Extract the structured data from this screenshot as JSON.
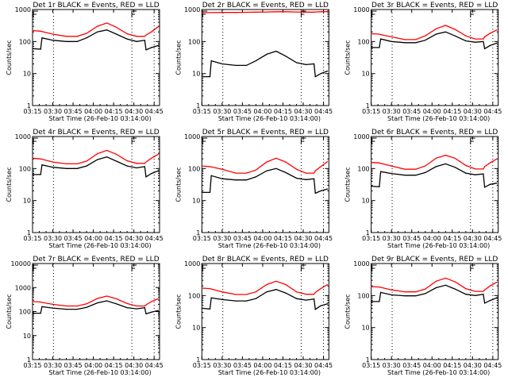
{
  "chart_data": {
    "type": "line",
    "layout": "3x3 grid",
    "x_unit": "minutes after 03:15",
    "xlim": [
      0,
      94
    ],
    "xticks": [
      0,
      15,
      30,
      45,
      60,
      75,
      90
    ],
    "xtick_labels": [
      "03:15",
      "03:30",
      "03:45",
      "04:00",
      "04:15",
      "04:30",
      "04:45"
    ],
    "xlabel": "Start Time (26-Feb-10 03:14:00)",
    "ylabel": "Counts/sec",
    "yscale": "log",
    "dotted_vlines": [
      15.5,
      73.5,
      90
    ],
    "x": [
      0,
      6,
      7,
      15,
      25,
      33,
      40,
      48,
      55,
      62,
      70,
      77,
      83,
      84,
      88,
      93
    ],
    "panels": [
      {
        "title": "Det 1r BLACK = Events, RED = LLD",
        "ylim": [
          1,
          1000
        ],
        "yticks": [
          1,
          10,
          100,
          1000
        ],
        "series": [
          {
            "name": "Events",
            "color": "#000000",
            "values": [
              60,
              58,
              130,
              110,
              100,
              100,
              130,
              200,
              230,
              170,
              120,
              100,
              110,
              55,
              65,
              75
            ]
          },
          {
            "name": "LLD",
            "color": "#ff0000",
            "values": [
              220,
              210,
              205,
              170,
              145,
              145,
              180,
              300,
              380,
              280,
              175,
              145,
              145,
              160,
              200,
              290
            ]
          }
        ]
      },
      {
        "title": "Det 2r BLACK = Events, RED = LLD",
        "ylim": [
          1,
          1000
        ],
        "yticks": [
          1,
          10,
          100,
          1000
        ],
        "series": [
          {
            "name": "Events",
            "color": "#000000",
            "values": [
              8,
              8,
              25,
              20,
              18,
              18,
              25,
              40,
              50,
              35,
              22,
              19,
              20,
              8,
              10,
              12
            ]
          },
          {
            "name": "LLD",
            "color": "#ff0000",
            "values": [
              800,
              800,
              800,
              810,
              810,
              820,
              830,
              840,
              850,
              850,
              840,
              830,
              830,
              840,
              850,
              860
            ]
          }
        ]
      },
      {
        "title": "Det 3r BLACK = Events, RED = LLD",
        "ylim": [
          1,
          1000
        ],
        "yticks": [
          1,
          10,
          100,
          1000
        ],
        "series": [
          {
            "name": "Events",
            "color": "#000000",
            "values": [
              65,
              65,
              120,
              100,
              92,
              92,
              110,
              170,
              200,
              150,
              105,
              95,
              100,
              60,
              75,
              90
            ]
          },
          {
            "name": "LLD",
            "color": "#ff0000",
            "values": [
              175,
              170,
              165,
              140,
              115,
              115,
              150,
              250,
              320,
              240,
              150,
              120,
              120,
              140,
              180,
              230
            ]
          }
        ]
      },
      {
        "title": "Det 4r BLACK = Events, RED = LLD",
        "ylim": [
          1,
          1000
        ],
        "yticks": [
          1,
          10,
          100,
          1000
        ],
        "series": [
          {
            "name": "Events",
            "color": "#000000",
            "values": [
              65,
              65,
              130,
              110,
              100,
              100,
              120,
              190,
              230,
              170,
              120,
              105,
              115,
              55,
              70,
              85
            ]
          },
          {
            "name": "LLD",
            "color": "#ff0000",
            "values": [
              210,
              200,
              195,
              160,
              140,
              140,
              170,
              290,
              370,
              280,
              175,
              145,
              145,
              160,
              210,
              280
            ]
          }
        ]
      },
      {
        "title": "Det 5r BLACK = Events, RED = LLD",
        "ylim": [
          1,
          1000
        ],
        "yticks": [
          1,
          10,
          100,
          1000
        ],
        "series": [
          {
            "name": "Events",
            "color": "#000000",
            "values": [
              18,
              18,
              60,
              48,
              44,
              44,
              55,
              85,
              100,
              75,
              50,
              45,
              48,
              17,
              20,
              23
            ]
          },
          {
            "name": "LLD",
            "color": "#ff0000",
            "values": [
              120,
              115,
              112,
              95,
              72,
              72,
              90,
              160,
              210,
              160,
              95,
              72,
              72,
              85,
              115,
              165
            ]
          }
        ]
      },
      {
        "title": "Det 6r BLACK = Events, RED = LLD",
        "ylim": [
          1,
          1000
        ],
        "yticks": [
          1,
          10,
          100,
          1000
        ],
        "series": [
          {
            "name": "Events",
            "color": "#000000",
            "values": [
              28,
              27,
              80,
              70,
              62,
              62,
              75,
              115,
              140,
              110,
              72,
              64,
              68,
              26,
              32,
              35
            ]
          },
          {
            "name": "LLD",
            "color": "#ff0000",
            "values": [
              155,
              150,
              145,
              120,
              95,
              95,
              120,
              210,
              260,
              210,
              125,
              97,
              97,
              115,
              150,
              200
            ]
          }
        ]
      },
      {
        "title": "Det 7r BLACK = Events, RED = LLD",
        "ylim": [
          1,
          10000
        ],
        "yticks": [
          1,
          10,
          100,
          1000,
          10000
        ],
        "series": [
          {
            "name": "Events",
            "color": "#000000",
            "values": [
              85,
              85,
              160,
              140,
              125,
              125,
              150,
              230,
              280,
              210,
              145,
              130,
              145,
              80,
              95,
              110
            ]
          },
          {
            "name": "LLD",
            "color": "#ff0000",
            "values": [
              260,
              250,
              240,
              200,
              170,
              170,
              210,
              350,
              440,
              340,
              215,
              170,
              170,
              190,
              260,
              340
            ]
          }
        ]
      },
      {
        "title": "Det 8r BLACK = Events, RED = LLD",
        "ylim": [
          1,
          1000
        ],
        "yticks": [
          1,
          10,
          100,
          1000
        ],
        "series": [
          {
            "name": "Events",
            "color": "#000000",
            "values": [
              40,
              38,
              85,
              75,
              68,
              68,
              80,
              130,
              155,
              120,
              80,
              72,
              78,
              37,
              48,
              55
            ]
          },
          {
            "name": "LLD",
            "color": "#ff0000",
            "values": [
              170,
              165,
              160,
              130,
              108,
              108,
              130,
              220,
              280,
              220,
              130,
              110,
              110,
              125,
              165,
              220
            ]
          }
        ]
      },
      {
        "title": "Det 9r BLACK = Events, RED = LLD",
        "ylim": [
          1,
          1000
        ],
        "yticks": [
          1,
          10,
          100,
          1000
        ],
        "series": [
          {
            "name": "Events",
            "color": "#000000",
            "values": [
              65,
              65,
              125,
              105,
              98,
              98,
              115,
              175,
              210,
              160,
              110,
              100,
              110,
              58,
              70,
              85
            ]
          },
          {
            "name": "LLD",
            "color": "#ff0000",
            "values": [
              190,
              185,
              180,
              150,
              130,
              130,
              160,
              280,
              350,
              270,
              165,
              135,
              135,
              150,
              200,
              260
            ]
          }
        ]
      }
    ]
  }
}
